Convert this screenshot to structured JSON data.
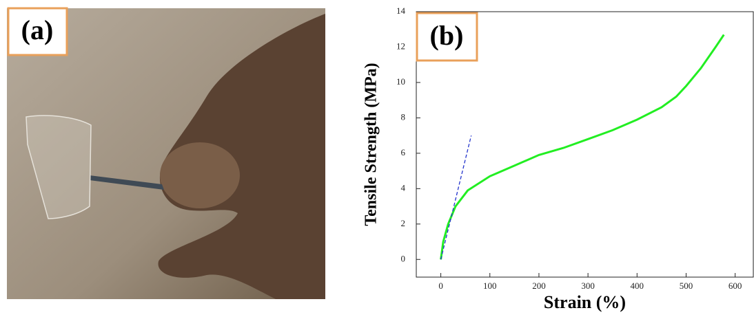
{
  "photo_label": "(a)",
  "chart_data": {
    "type": "line",
    "panel_label": "(b)",
    "xlabel": "Strain (%)",
    "ylabel": "Tensile Strength (MPa)",
    "xlim": [
      -50,
      637
    ],
    "ylim": [
      -1,
      14
    ],
    "xticks": [
      0,
      100,
      200,
      300,
      400,
      500,
      600
    ],
    "yticks": [
      0,
      2,
      4,
      6,
      8,
      10,
      12,
      14
    ],
    "series": [
      {
        "color": "#22ee22",
        "dashed": false,
        "x": [
          0,
          5,
          15,
          30,
          55,
          100,
          150,
          200,
          250,
          300,
          350,
          400,
          450,
          480,
          500,
          530,
          560,
          577
        ],
        "values": [
          0,
          1,
          2,
          3,
          3.9,
          4.7,
          5.3,
          5.9,
          6.3,
          6.8,
          7.3,
          7.9,
          8.6,
          9.2,
          9.8,
          10.8,
          12,
          12.7
        ]
      },
      {
        "color": "#2233cc",
        "dashed": true,
        "x": [
          0,
          62
        ],
        "values": [
          0,
          7
        ]
      }
    ]
  }
}
